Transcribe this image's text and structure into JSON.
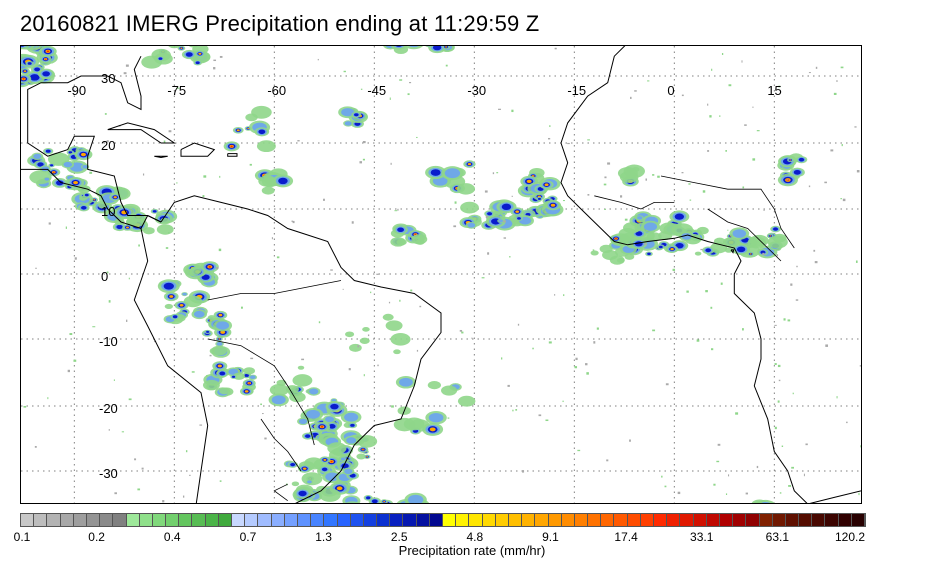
{
  "title": "20160821 IMERG Precipitation ending at 11:29:59 Z",
  "map": {
    "lon_labels": [
      "-90",
      "-75",
      "-60",
      "-45",
      "-30",
      "-15",
      "0",
      "15"
    ],
    "lat_labels": [
      "30",
      "20",
      "10",
      "0",
      "-10",
      "-20",
      "-30"
    ],
    "coastline_color": "#000000",
    "grid_style": "dotted",
    "grid_color": "#808080",
    "rain_colors": {
      "light": "#8fd68a",
      "moderate": "#6fa8e8",
      "heavy": "#0a1ccc",
      "very_heavy": "#ffa500",
      "extreme": "#ff2a00"
    }
  },
  "colorbar": {
    "label": "Precipitation rate (mm/hr)",
    "tick_labels": [
      "0.1",
      "0.2",
      "0.4",
      "0.7",
      "1.3",
      "2.5",
      "4.8",
      "9.1",
      "17.4",
      "33.1",
      "63.1",
      "120.2"
    ],
    "colors": [
      "#c8c8c8",
      "#bdbdbd",
      "#b3b3b3",
      "#a8a8a8",
      "#9e9e9e",
      "#949494",
      "#8a8a8a",
      "#808080",
      "#9ee89a",
      "#8fe08a",
      "#80d87b",
      "#72cf6d",
      "#64c65f",
      "#58bd54",
      "#4bb448",
      "#40aa3d",
      "#c8d8ff",
      "#b5cbff",
      "#a0bcff",
      "#8aaeff",
      "#74a0ff",
      "#5e92ff",
      "#4884ff",
      "#3276ff",
      "#2864ff",
      "#1e52f0",
      "#1440e0",
      "#0a30d0",
      "#0820c0",
      "#0618b0",
      "#0410a0",
      "#020890",
      "#ffff00",
      "#fff200",
      "#ffe600",
      "#ffd900",
      "#ffcc00",
      "#ffbf00",
      "#ffb200",
      "#ffa600",
      "#ff9900",
      "#ff8c00",
      "#ff7f00",
      "#ff7200",
      "#ff6600",
      "#ff5900",
      "#ff4c00",
      "#ff3f00",
      "#ff2a00",
      "#f02000",
      "#e01800",
      "#d01000",
      "#c00800",
      "#b00000",
      "#a00000",
      "#900000",
      "#802000",
      "#701800",
      "#601000",
      "#540c00",
      "#480800",
      "#3c0400",
      "#300000",
      "#280000"
    ]
  }
}
